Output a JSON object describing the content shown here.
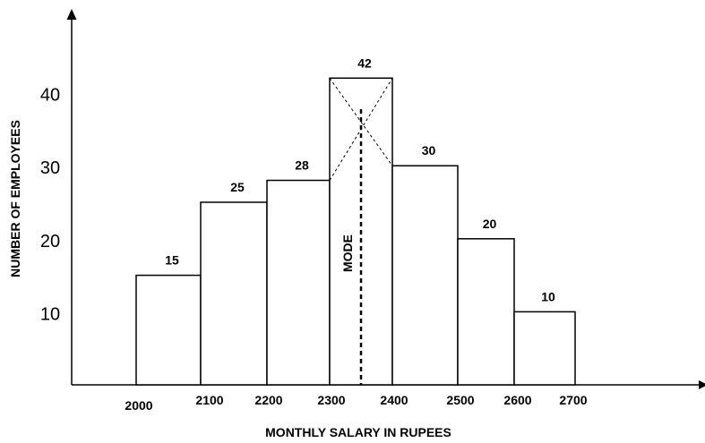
{
  "chart_data": {
    "type": "bar",
    "title": "",
    "xlabel": "MONTHLY SALARY IN RUPEES",
    "ylabel": "NUMBER OF EMPLOYEES",
    "ylim": [
      0,
      42
    ],
    "y_ticks": [
      10,
      20,
      30,
      40
    ],
    "x_ticks": [
      "2000",
      "2100",
      "2200",
      "2300",
      "2400",
      "2500",
      "2600",
      "2700"
    ],
    "bins": [
      {
        "from": 2000,
        "to": 2100,
        "value": 15,
        "label": "15"
      },
      {
        "from": 2100,
        "to": 2200,
        "value": 25,
        "label": "25"
      },
      {
        "from": 2200,
        "to": 2300,
        "value": 28,
        "label": "28"
      },
      {
        "from": 2300,
        "to": 2400,
        "value": 42,
        "label": "42"
      },
      {
        "from": 2400,
        "to": 2500,
        "value": 30,
        "label": "30"
      },
      {
        "from": 2500,
        "to": 2600,
        "value": 20,
        "label": "20"
      },
      {
        "from": 2600,
        "to": 2700,
        "value": 10,
        "label": "10"
      }
    ],
    "mode_label": "MODE",
    "mode_value": 2350,
    "grid": false,
    "legend": "none"
  }
}
